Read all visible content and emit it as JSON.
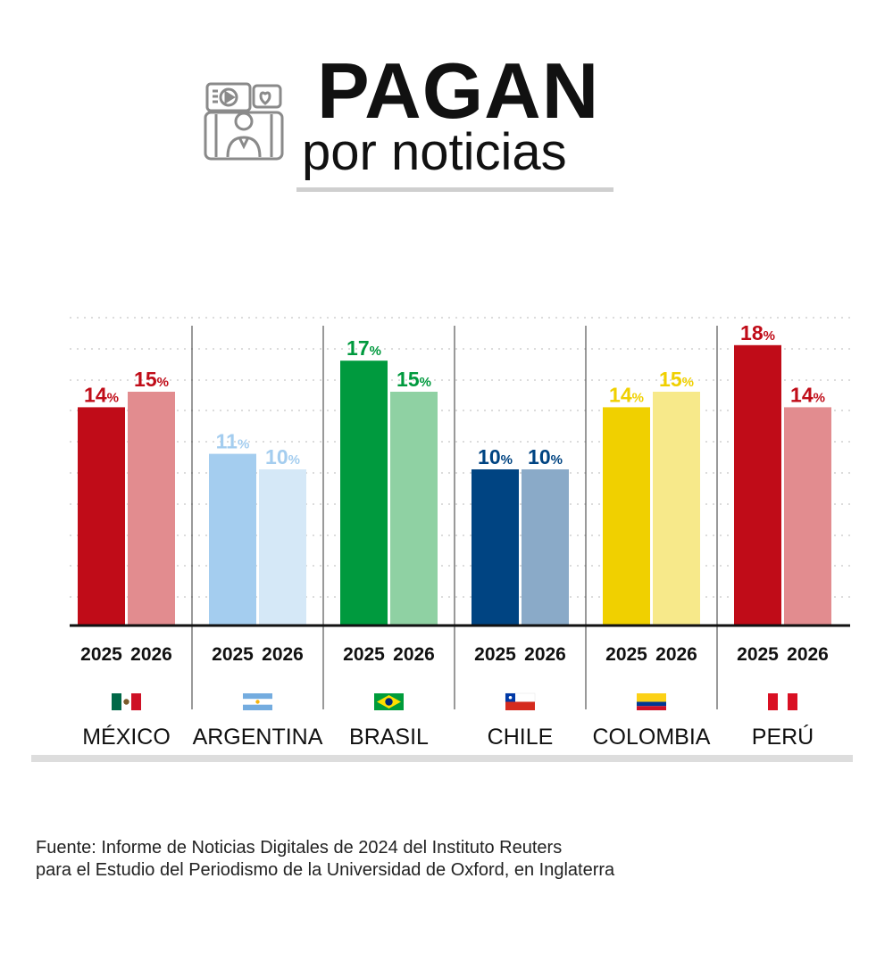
{
  "title": "PAGAN",
  "subtitle": "por noticias",
  "header_icon": "video-news-icon",
  "source_lines": [
    "Fuente: Informe de Noticias Digitales de 2024 del Instituto Reuters",
    "para el Estudio del Periodismo de la Universidad de Oxford, en Inglaterra"
  ],
  "chart_data": {
    "type": "bar",
    "title": "PAGAN por noticias",
    "ylim": [
      0,
      20
    ],
    "grid": true,
    "value_suffix": "%",
    "years": [
      "2025",
      "2026"
    ],
    "groups": [
      {
        "country": "MÉXICO",
        "flag": "mexico-flag-icon",
        "values": [
          14,
          15
        ],
        "labels": [
          "14",
          "15"
        ],
        "colors": [
          "#c00c18",
          "#e28c8f"
        ],
        "label_colors": [
          "#c00c18",
          "#c00c18"
        ]
      },
      {
        "country": "ARGENTINA",
        "flag": "argentina-flag-icon",
        "values": [
          11,
          10
        ],
        "labels": [
          "11",
          "10"
        ],
        "colors": [
          "#a4cdef",
          "#d5e8f7"
        ],
        "label_colors": [
          "#a4cdef",
          "#a4cdef"
        ]
      },
      {
        "country": "BRASIL",
        "flag": "brazil-flag-icon",
        "values": [
          17,
          15
        ],
        "labels": [
          "17",
          "15"
        ],
        "colors": [
          "#009a3e",
          "#8fd1a3"
        ],
        "label_colors": [
          "#009a3e",
          "#009a3e"
        ]
      },
      {
        "country": "CHILE",
        "flag": "chile-flag-icon",
        "values": [
          10,
          10
        ],
        "labels": [
          "10",
          "10"
        ],
        "colors": [
          "#004482",
          "#8aaac8"
        ],
        "label_colors": [
          "#004482",
          "#004482"
        ]
      },
      {
        "country": "COLOMBIA",
        "flag": "colombia-flag-icon",
        "values": [
          14,
          15
        ],
        "labels": [
          "14",
          "15"
        ],
        "colors": [
          "#f0d000",
          "#f7e98a"
        ],
        "label_colors": [
          "#f0d000",
          "#f0d000"
        ]
      },
      {
        "country": "PERÚ",
        "flag": "peru-flag-icon",
        "values": [
          18,
          14
        ],
        "labels": [
          "18",
          "14"
        ],
        "colors": [
          "#c00c18",
          "#e28c8f"
        ],
        "label_colors": [
          "#c00c18",
          "#c00c18"
        ]
      }
    ]
  }
}
